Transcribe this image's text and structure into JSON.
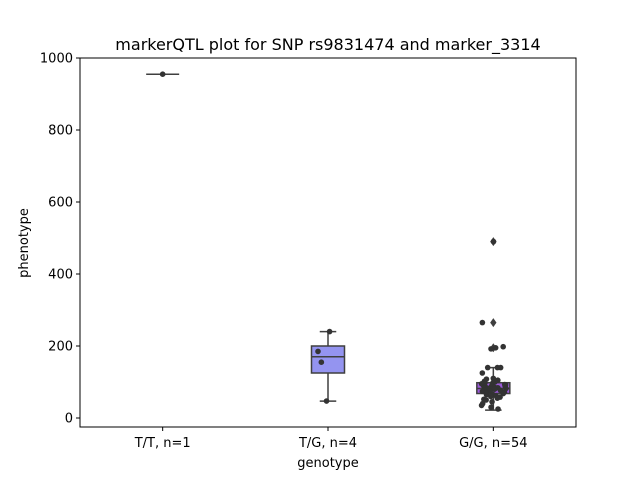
{
  "chart_data": {
    "type": "box",
    "title": "markerQTL plot for SNP rs9831474 and marker_3314",
    "xlabel": "genotype",
    "ylabel": "phenotype",
    "ylim": [
      -25,
      1000
    ],
    "yticks": [
      0,
      200,
      400,
      600,
      800,
      1000
    ],
    "categories": [
      "T/T, n=1",
      "T/G, n=4",
      "G/G, n=54"
    ],
    "colors": {
      "box_fills": [
        "#e8e8ff",
        "#9494f0",
        "#9b59d9"
      ],
      "box_edge": "#3f3f3f",
      "points": "#333333"
    },
    "boxes": [
      {
        "category": "T/T, n=1",
        "q1": 955,
        "median": 955,
        "q3": 955,
        "whisker_low": 955,
        "whisker_high": 955,
        "outliers": []
      },
      {
        "category": "T/G, n=4",
        "q1": 125,
        "median": 170,
        "q3": 200,
        "whisker_low": 47,
        "whisker_high": 240,
        "outliers": []
      },
      {
        "category": "G/G, n=54",
        "q1": 68,
        "median": 82,
        "q3": 98,
        "whisker_low": 22,
        "whisker_high": 140,
        "outliers": [
          490,
          265,
          195
        ]
      }
    ],
    "points": [
      {
        "category": "T/T, n=1",
        "values": [
          955
        ]
      },
      {
        "category": "T/G, n=4",
        "values": [
          240,
          185,
          155,
          47
        ]
      },
      {
        "category": "G/G, n=54",
        "values": [
          490,
          265,
          198,
          195,
          192,
          140,
          140,
          140,
          125,
          110,
          108,
          105,
          102,
          100,
          98,
          97,
          95,
          93,
          92,
          90,
          90,
          88,
          87,
          86,
          85,
          84,
          83,
          82,
          82,
          81,
          80,
          80,
          79,
          78,
          77,
          76,
          75,
          74,
          72,
          70,
          68,
          66,
          65,
          62,
          60,
          58,
          55,
          52,
          50,
          45,
          40,
          35,
          30,
          25
        ]
      }
    ]
  }
}
